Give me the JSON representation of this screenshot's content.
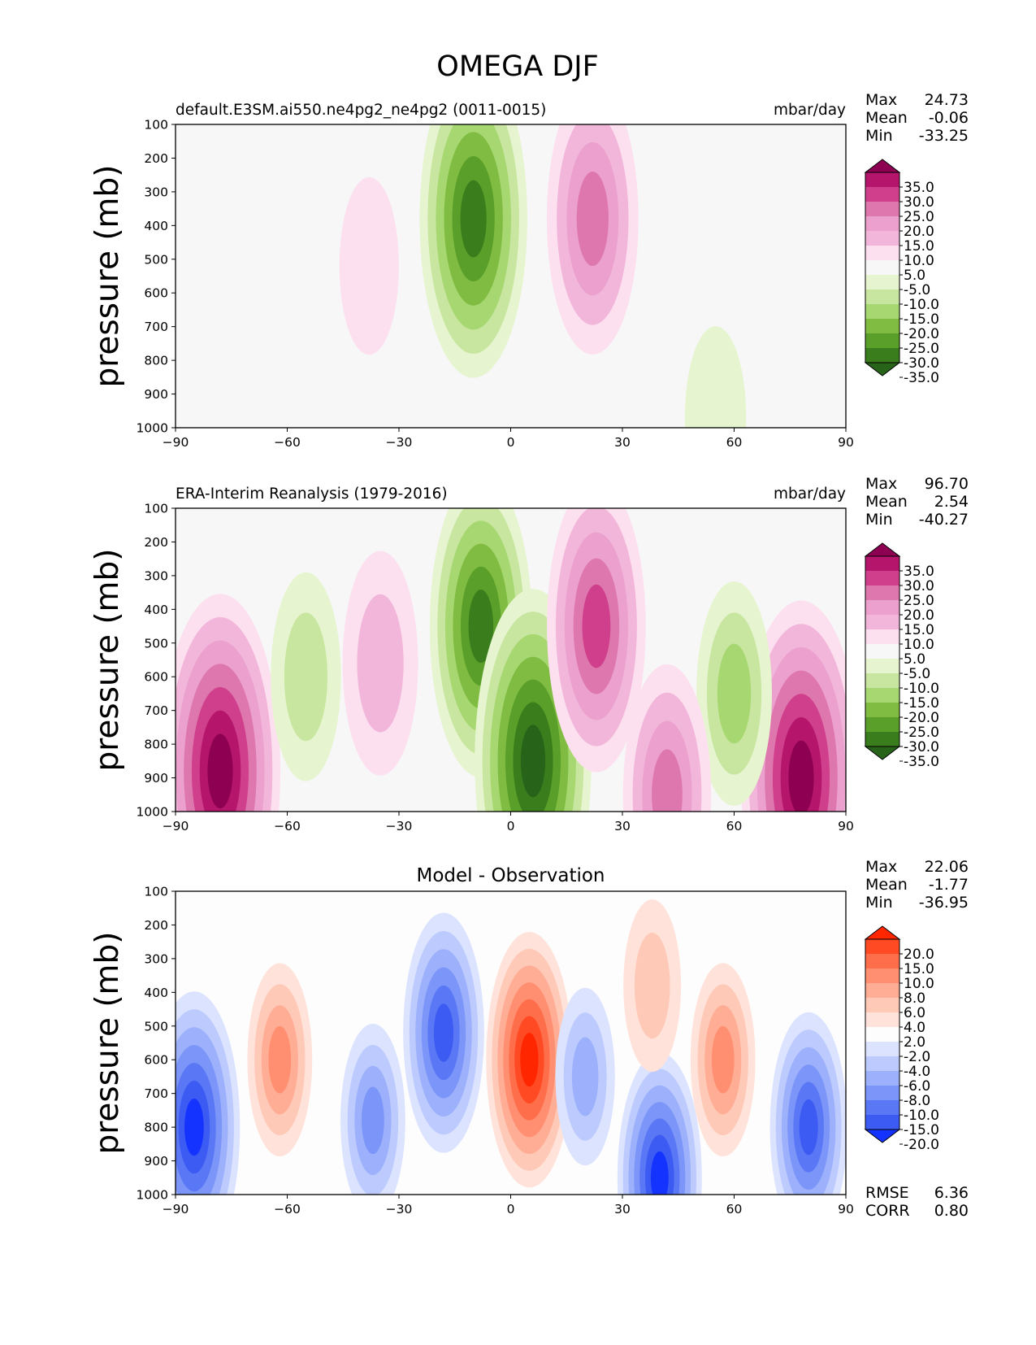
{
  "figure": {
    "title": "OMEGA DJF"
  },
  "chart_data": [
    {
      "type": "heatmap",
      "name": "panel-model",
      "title": "default.E3SM.ai550.ne4pg2_ne4pg2 (0011-0015)",
      "units": "mbar/day",
      "ylabel": "pressure (mb)",
      "xlabel": "",
      "xlim": [
        -90,
        90
      ],
      "ylim": [
        1000,
        100
      ],
      "xticks": [
        "−90",
        "−60",
        "−30",
        "0",
        "30",
        "60",
        "90"
      ],
      "yticks": [
        "100",
        "200",
        "300",
        "400",
        "500",
        "600",
        "700",
        "800",
        "900",
        "1000"
      ],
      "stats": {
        "max_label": "Max",
        "max": "24.73",
        "mean_label": "Mean",
        "mean": "-0.06",
        "min_label": "Min",
        "min": "-33.25"
      },
      "colorbar": {
        "labels": [
          "35.0",
          "30.0",
          "25.0",
          "20.0",
          "15.0",
          "10.0",
          "5.0",
          "-5.0",
          "-10.0",
          "-15.0",
          "-20.0",
          "-25.0",
          "-30.0",
          "-35.0"
        ],
        "colors": [
          "#8e0152",
          "#b5166b",
          "#cf3f8b",
          "#de77ae",
          "#eba0cd",
          "#f1b6da",
          "#fde0ef",
          "#f7f7f7",
          "#e6f5d0",
          "#c8e6a0",
          "#a7d770",
          "#7fbc41",
          "#5a9f2a",
          "#3a7d1c",
          "#276419"
        ]
      },
      "features": [
        {
          "lat": -10,
          "p": 380,
          "value": -33
        },
        {
          "lat": 22,
          "p": 380,
          "value": 24
        },
        {
          "lat": -38,
          "p": 520,
          "value": 6
        },
        {
          "lat": 55,
          "p": 970,
          "value": -7
        }
      ]
    },
    {
      "type": "heatmap",
      "name": "panel-reference",
      "title": "ERA-Interim Reanalysis (1979-2016)",
      "units": "mbar/day",
      "ylabel": "pressure (mb)",
      "xlabel": "",
      "xlim": [
        -90,
        90
      ],
      "ylim": [
        1000,
        100
      ],
      "xticks": [
        "−90",
        "−60",
        "−30",
        "0",
        "30",
        "60",
        "90"
      ],
      "yticks": [
        "100",
        "200",
        "300",
        "400",
        "500",
        "600",
        "700",
        "800",
        "900",
        "1000"
      ],
      "stats": {
        "max_label": "Max",
        "max": "96.70",
        "mean_label": "Mean",
        "mean": "2.54",
        "min_label": "Min",
        "min": "-40.27"
      },
      "colorbar": {
        "labels": [
          "35.0",
          "30.0",
          "25.0",
          "20.0",
          "15.0",
          "10.0",
          "5.0",
          "-5.0",
          "-10.0",
          "-15.0",
          "-20.0",
          "-25.0",
          "-30.0",
          "-35.0"
        ],
        "colors": [
          "#8e0152",
          "#b5166b",
          "#cf3f8b",
          "#de77ae",
          "#eba0cd",
          "#f1b6da",
          "#fde0ef",
          "#f7f7f7",
          "#e6f5d0",
          "#c8e6a0",
          "#a7d770",
          "#7fbc41",
          "#5a9f2a",
          "#3a7d1c",
          "#276419"
        ]
      },
      "features": [
        {
          "lat": -8,
          "p": 450,
          "value": -30
        },
        {
          "lat": 6,
          "p": 850,
          "value": -38
        },
        {
          "lat": 23,
          "p": 450,
          "value": 28
        },
        {
          "lat": -78,
          "p": 880,
          "value": 90
        },
        {
          "lat": 78,
          "p": 900,
          "value": 60
        },
        {
          "lat": -35,
          "p": 560,
          "value": 15
        },
        {
          "lat": -55,
          "p": 600,
          "value": -12
        },
        {
          "lat": 60,
          "p": 650,
          "value": -15
        },
        {
          "lat": 42,
          "p": 950,
          "value": 22
        }
      ]
    },
    {
      "type": "heatmap",
      "name": "panel-difference",
      "title": "Model - Observation",
      "units": "",
      "ylabel": "pressure (mb)",
      "xlabel": "",
      "xlim": [
        -90,
        90
      ],
      "ylim": [
        1000,
        100
      ],
      "xticks": [
        "−90",
        "−60",
        "−30",
        "0",
        "30",
        "60",
        "90"
      ],
      "yticks": [
        "100",
        "200",
        "300",
        "400",
        "500",
        "600",
        "700",
        "800",
        "900",
        "1000"
      ],
      "stats": {
        "max_label": "Max",
        "max": "22.06",
        "mean_label": "Mean",
        "mean": "-1.77",
        "min_label": "Min",
        "min": "-36.95"
      },
      "error_stats": {
        "rmse_label": "RMSE",
        "rmse": "6.36",
        "corr_label": "CORR",
        "corr": "0.80"
      },
      "colorbar": {
        "labels": [
          "20.0",
          "15.0",
          "10.0",
          "8.0",
          "6.0",
          "4.0",
          "2.0",
          "-2.0",
          "-4.0",
          "-6.0",
          "-8.0",
          "-10.0",
          "-15.0",
          "-20.0"
        ],
        "colors": [
          "#ff2600",
          "#ff4a24",
          "#ff6e4a",
          "#ff8f70",
          "#ffad95",
          "#ffc9b8",
          "#ffe3da",
          "#fdfdfd",
          "#dbe3ff",
          "#bccafd",
          "#9cb0fb",
          "#7b95f8",
          "#5a77f5",
          "#3b5bf2",
          "#1433ff"
        ]
      },
      "features": [
        {
          "lat": 5,
          "p": 600,
          "value": 21
        },
        {
          "lat": -18,
          "p": 520,
          "value": -18
        },
        {
          "lat": -85,
          "p": 800,
          "value": -24
        },
        {
          "lat": -62,
          "p": 600,
          "value": 9
        },
        {
          "lat": 40,
          "p": 950,
          "value": -20
        },
        {
          "lat": 57,
          "p": 600,
          "value": 9
        },
        {
          "lat": 80,
          "p": 800,
          "value": -16
        },
        {
          "lat": 38,
          "p": 380,
          "value": 5
        },
        {
          "lat": -37,
          "p": 780,
          "value": -9
        },
        {
          "lat": 20,
          "p": 650,
          "value": -6
        }
      ]
    }
  ]
}
